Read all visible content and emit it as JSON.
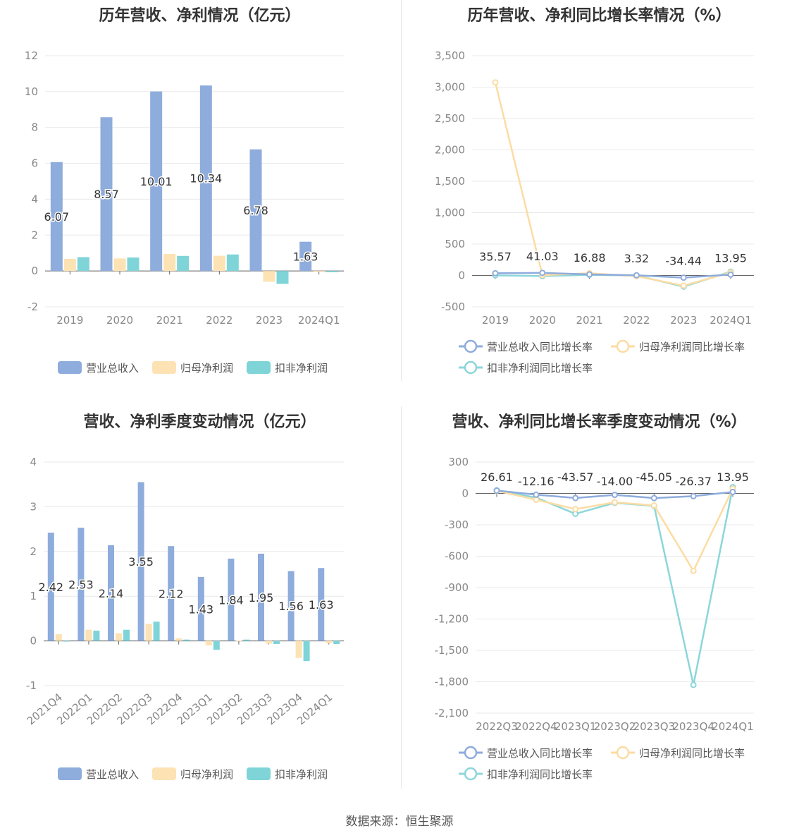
{
  "source": "数据来源：恒生聚源",
  "colors": {
    "revenue_bar": "#8eacdc",
    "parent_bar": "#fde2b4",
    "deducted_bar": "#7fd4d8",
    "revenue_line": "#8eacdc",
    "parent_line": "#fcdca3",
    "deducted_line": "#8cd6d9"
  },
  "chart_data": [
    {
      "type": "bar",
      "title": "历年营收、净利情况（亿元）",
      "categories": [
        "2019",
        "2020",
        "2021",
        "2022",
        "2023",
        "2024Q1"
      ],
      "ylim": [
        -2,
        12
      ],
      "yticks": [
        "-2",
        "0",
        "2",
        "4",
        "6",
        "8",
        "10",
        "12"
      ],
      "series": [
        {
          "name": "营业总收入",
          "values": [
            6.07,
            8.57,
            10.01,
            10.34,
            6.78,
            1.63
          ],
          "labels": [
            "6.07",
            "8.57",
            "10.01",
            "10.34",
            "6.78",
            "1.63"
          ]
        },
        {
          "name": "归母净利润",
          "values": [
            0.68,
            0.7,
            0.95,
            0.85,
            -0.6,
            -0.05
          ]
        },
        {
          "name": "扣非净利润",
          "values": [
            0.77,
            0.75,
            0.84,
            0.92,
            -0.72,
            -0.07
          ]
        }
      ],
      "legend": "bottom"
    },
    {
      "type": "line",
      "title": "历年营收、净利同比增长率情况（%）",
      "categories": [
        "2019",
        "2020",
        "2021",
        "2022",
        "2023",
        "2024Q1"
      ],
      "ylim": [
        -500,
        3500
      ],
      "yticks": [
        "-500",
        "0",
        "500",
        "1,000",
        "1,500",
        "2,000",
        "2,500",
        "3,000",
        "3,500"
      ],
      "series": [
        {
          "name": "营业总收入同比增长率",
          "values": [
            35.57,
            41.03,
            16.88,
            3.32,
            -34.44,
            13.95
          ],
          "labels": [
            "35.57",
            "41.03",
            "16.88",
            "3.32",
            "-34.44",
            "13.95"
          ]
        },
        {
          "name": "归母净利润同比增长率",
          "values": [
            3075,
            5,
            35,
            -12,
            -163,
            48
          ]
        },
        {
          "name": "扣非净利润同比增长率",
          "values": [
            2,
            -10,
            10,
            -2,
            -178,
            60
          ]
        }
      ],
      "legend": "bottom"
    },
    {
      "type": "bar",
      "title": "营收、净利季度变动情况（亿元）",
      "categories": [
        "2021Q4",
        "2022Q1",
        "2022Q2",
        "2022Q3",
        "2022Q4",
        "2023Q1",
        "2023Q2",
        "2023Q3",
        "2023Q4",
        "2024Q1"
      ],
      "ylim": [
        -1,
        4
      ],
      "yticks": [
        "-1",
        "0",
        "1",
        "2",
        "3",
        "4"
      ],
      "series": [
        {
          "name": "营业总收入",
          "values": [
            2.42,
            2.53,
            2.14,
            3.55,
            2.12,
            1.43,
            1.84,
            1.95,
            1.56,
            1.63
          ],
          "labels": [
            "2.42",
            "2.53",
            "2.14",
            "3.55",
            "2.12",
            "1.43",
            "1.84",
            "1.95",
            "1.56",
            "1.63"
          ]
        },
        {
          "name": "归母净利润",
          "values": [
            0.15,
            0.25,
            0.17,
            0.38,
            0.06,
            -0.1,
            0.01,
            -0.06,
            -0.38,
            -0.05
          ]
        },
        {
          "name": "扣非净利润",
          "values": [
            0.0,
            0.23,
            0.25,
            0.43,
            0.03,
            -0.2,
            0.03,
            -0.07,
            -0.45,
            -0.07
          ]
        }
      ],
      "legend": "bottom"
    },
    {
      "type": "line",
      "title": "营收、净利同比增长率季度变动情况（%）",
      "categories": [
        "2022Q3",
        "2022Q4",
        "2023Q1",
        "2023Q2",
        "2023Q3",
        "2023Q4",
        "2024Q1"
      ],
      "ylim": [
        -2100,
        300
      ],
      "yticks": [
        "-2,100",
        "-1,800",
        "-1,500",
        "-1,200",
        "-900",
        "-600",
        "-300",
        "0",
        "300"
      ],
      "series": [
        {
          "name": "营业总收入同比增长率",
          "values": [
            26.61,
            -12.16,
            -43.57,
            -14.0,
            -45.05,
            -26.37,
            13.95
          ],
          "labels": [
            "26.61",
            "-12.16",
            "-43.57",
            "-14.00",
            "-45.05",
            "-26.37",
            "13.95"
          ]
        },
        {
          "name": "归母净利润同比增长率",
          "values": [
            25,
            -60,
            -150,
            -85,
            -115,
            -740,
            45
          ]
        },
        {
          "name": "扣非净利润同比增长率",
          "values": [
            30,
            -40,
            -195,
            -90,
            -120,
            -1830,
            60
          ]
        }
      ],
      "legend": "bottom"
    }
  ]
}
